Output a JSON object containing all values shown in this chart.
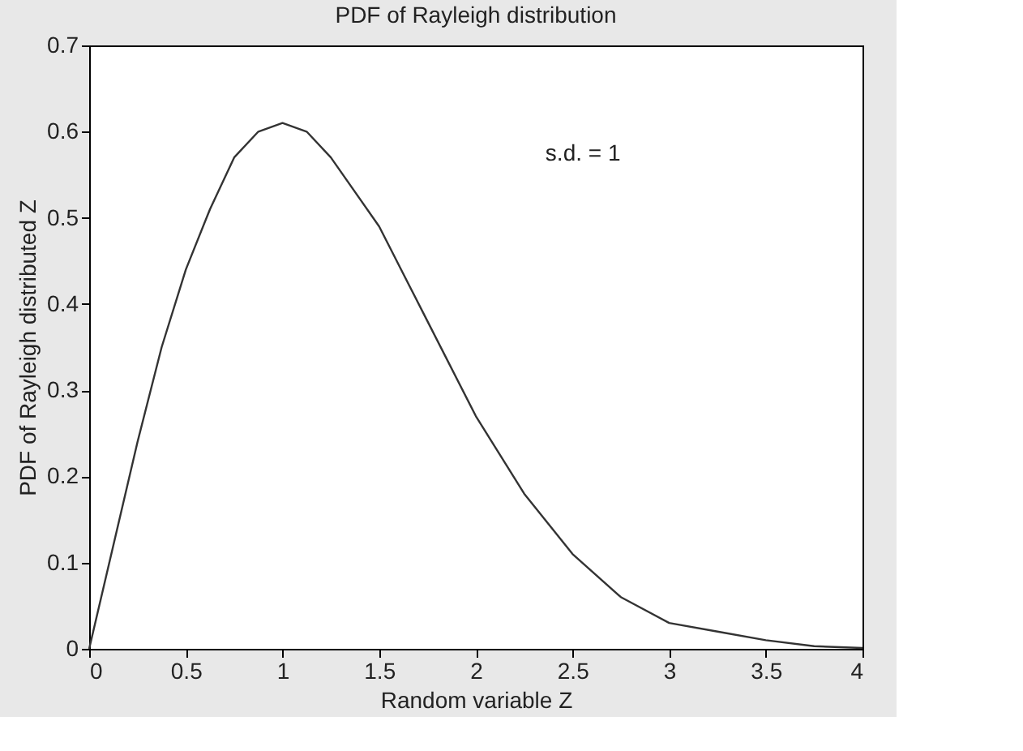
{
  "chart_data": {
    "type": "line",
    "title": "PDF of Rayleigh distribution",
    "xlabel": "Random variable Z",
    "ylabel": "PDF of Rayleigh distributed Z",
    "x": [
      0,
      0.125,
      0.25,
      0.375,
      0.5,
      0.625,
      0.75,
      0.875,
      1,
      1.125,
      1.25,
      1.5,
      1.75,
      2,
      2.25,
      2.5,
      2.75,
      3,
      3.25,
      3.5,
      3.75,
      4
    ],
    "series": [
      {
        "color": "#333333",
        "values": [
          0,
          0.12,
          0.24,
          0.35,
          0.44,
          0.51,
          0.57,
          0.6,
          0.61,
          0.6,
          0.57,
          0.49,
          0.38,
          0.27,
          0.18,
          0.11,
          0.06,
          0.03,
          0.02,
          0.01,
          0.003,
          0.001
        ]
      }
    ],
    "xlim": [
      0,
      4
    ],
    "xticks": [
      0,
      0.5,
      1,
      1.5,
      2,
      2.5,
      3,
      3.5,
      4
    ],
    "ylim": [
      0,
      0.7
    ],
    "yticks": [
      0,
      0.1,
      0.2,
      0.3,
      0.4,
      0.5,
      0.6,
      0.7
    ],
    "annotations": [
      "s.d. = 1"
    ],
    "grid": false,
    "marker": "none",
    "line_style": "solid"
  }
}
